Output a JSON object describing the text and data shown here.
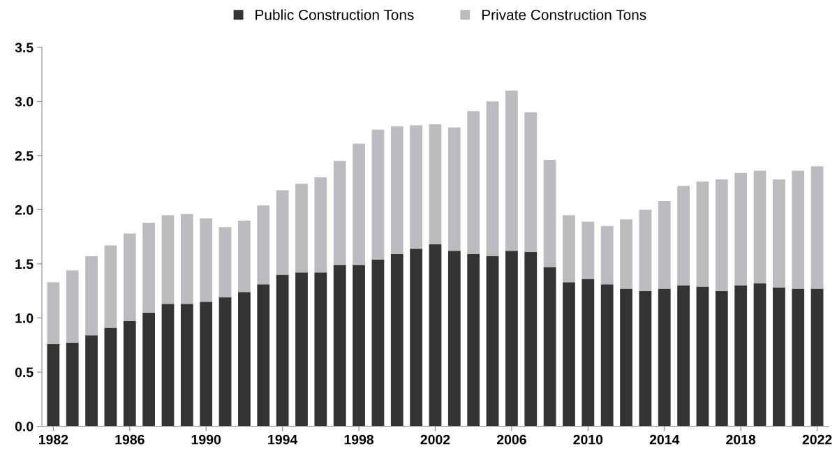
{
  "chart_data": {
    "type": "bar",
    "stacked": true,
    "categories": [
      "1982",
      null,
      null,
      null,
      "1986",
      null,
      null,
      null,
      "1990",
      null,
      null,
      null,
      "1994",
      null,
      null,
      null,
      "1998",
      null,
      null,
      null,
      "2002",
      null,
      null,
      null,
      "2006",
      null,
      null,
      null,
      "2010",
      null,
      null,
      null,
      "2014",
      null,
      null,
      null,
      "2018",
      null,
      null,
      null,
      "2022"
    ],
    "series": [
      {
        "name": "Public Construction Tons",
        "color": "#333333",
        "values": [
          0.76,
          0.77,
          0.84,
          0.91,
          0.97,
          1.05,
          1.13,
          1.13,
          1.15,
          1.19,
          1.24,
          1.31,
          1.4,
          1.42,
          1.42,
          1.49,
          1.49,
          1.54,
          1.59,
          1.64,
          1.68,
          1.62,
          1.59,
          1.57,
          1.62,
          1.61,
          1.47,
          1.33,
          1.36,
          1.31,
          1.27,
          1.25,
          1.27,
          1.3,
          1.29,
          1.25,
          1.3,
          1.32,
          1.28,
          1.27,
          1.27
        ]
      },
      {
        "name": "Private Construction Tons",
        "color": "#bbbcc0",
        "values": [
          0.57,
          0.67,
          0.73,
          0.76,
          0.81,
          0.83,
          0.82,
          0.83,
          0.77,
          0.65,
          0.66,
          0.73,
          0.78,
          0.82,
          0.88,
          0.96,
          1.12,
          1.2,
          1.18,
          1.14,
          1.11,
          1.14,
          1.32,
          1.43,
          1.48,
          1.29,
          0.99,
          0.62,
          0.53,
          0.54,
          0.64,
          0.75,
          0.81,
          0.92,
          0.97,
          1.03,
          1.04,
          1.04,
          1.0,
          1.09,
          1.13
        ]
      }
    ],
    "ylim": [
      0,
      3.5
    ],
    "yticks": [
      {
        "value": 0,
        "label": "0.0"
      },
      {
        "value": 0.5,
        "label": "0.5"
      },
      {
        "value": 1,
        "label": "1.0"
      },
      {
        "value": 1.5,
        "label": "1.5"
      },
      {
        "value": 2,
        "label": "2.0"
      },
      {
        "value": 2.5,
        "label": "2.5"
      },
      {
        "value": 3,
        "label": "3.0"
      },
      {
        "value": 3.5,
        "label": "3.5"
      }
    ],
    "grid": false,
    "legend": "top"
  }
}
